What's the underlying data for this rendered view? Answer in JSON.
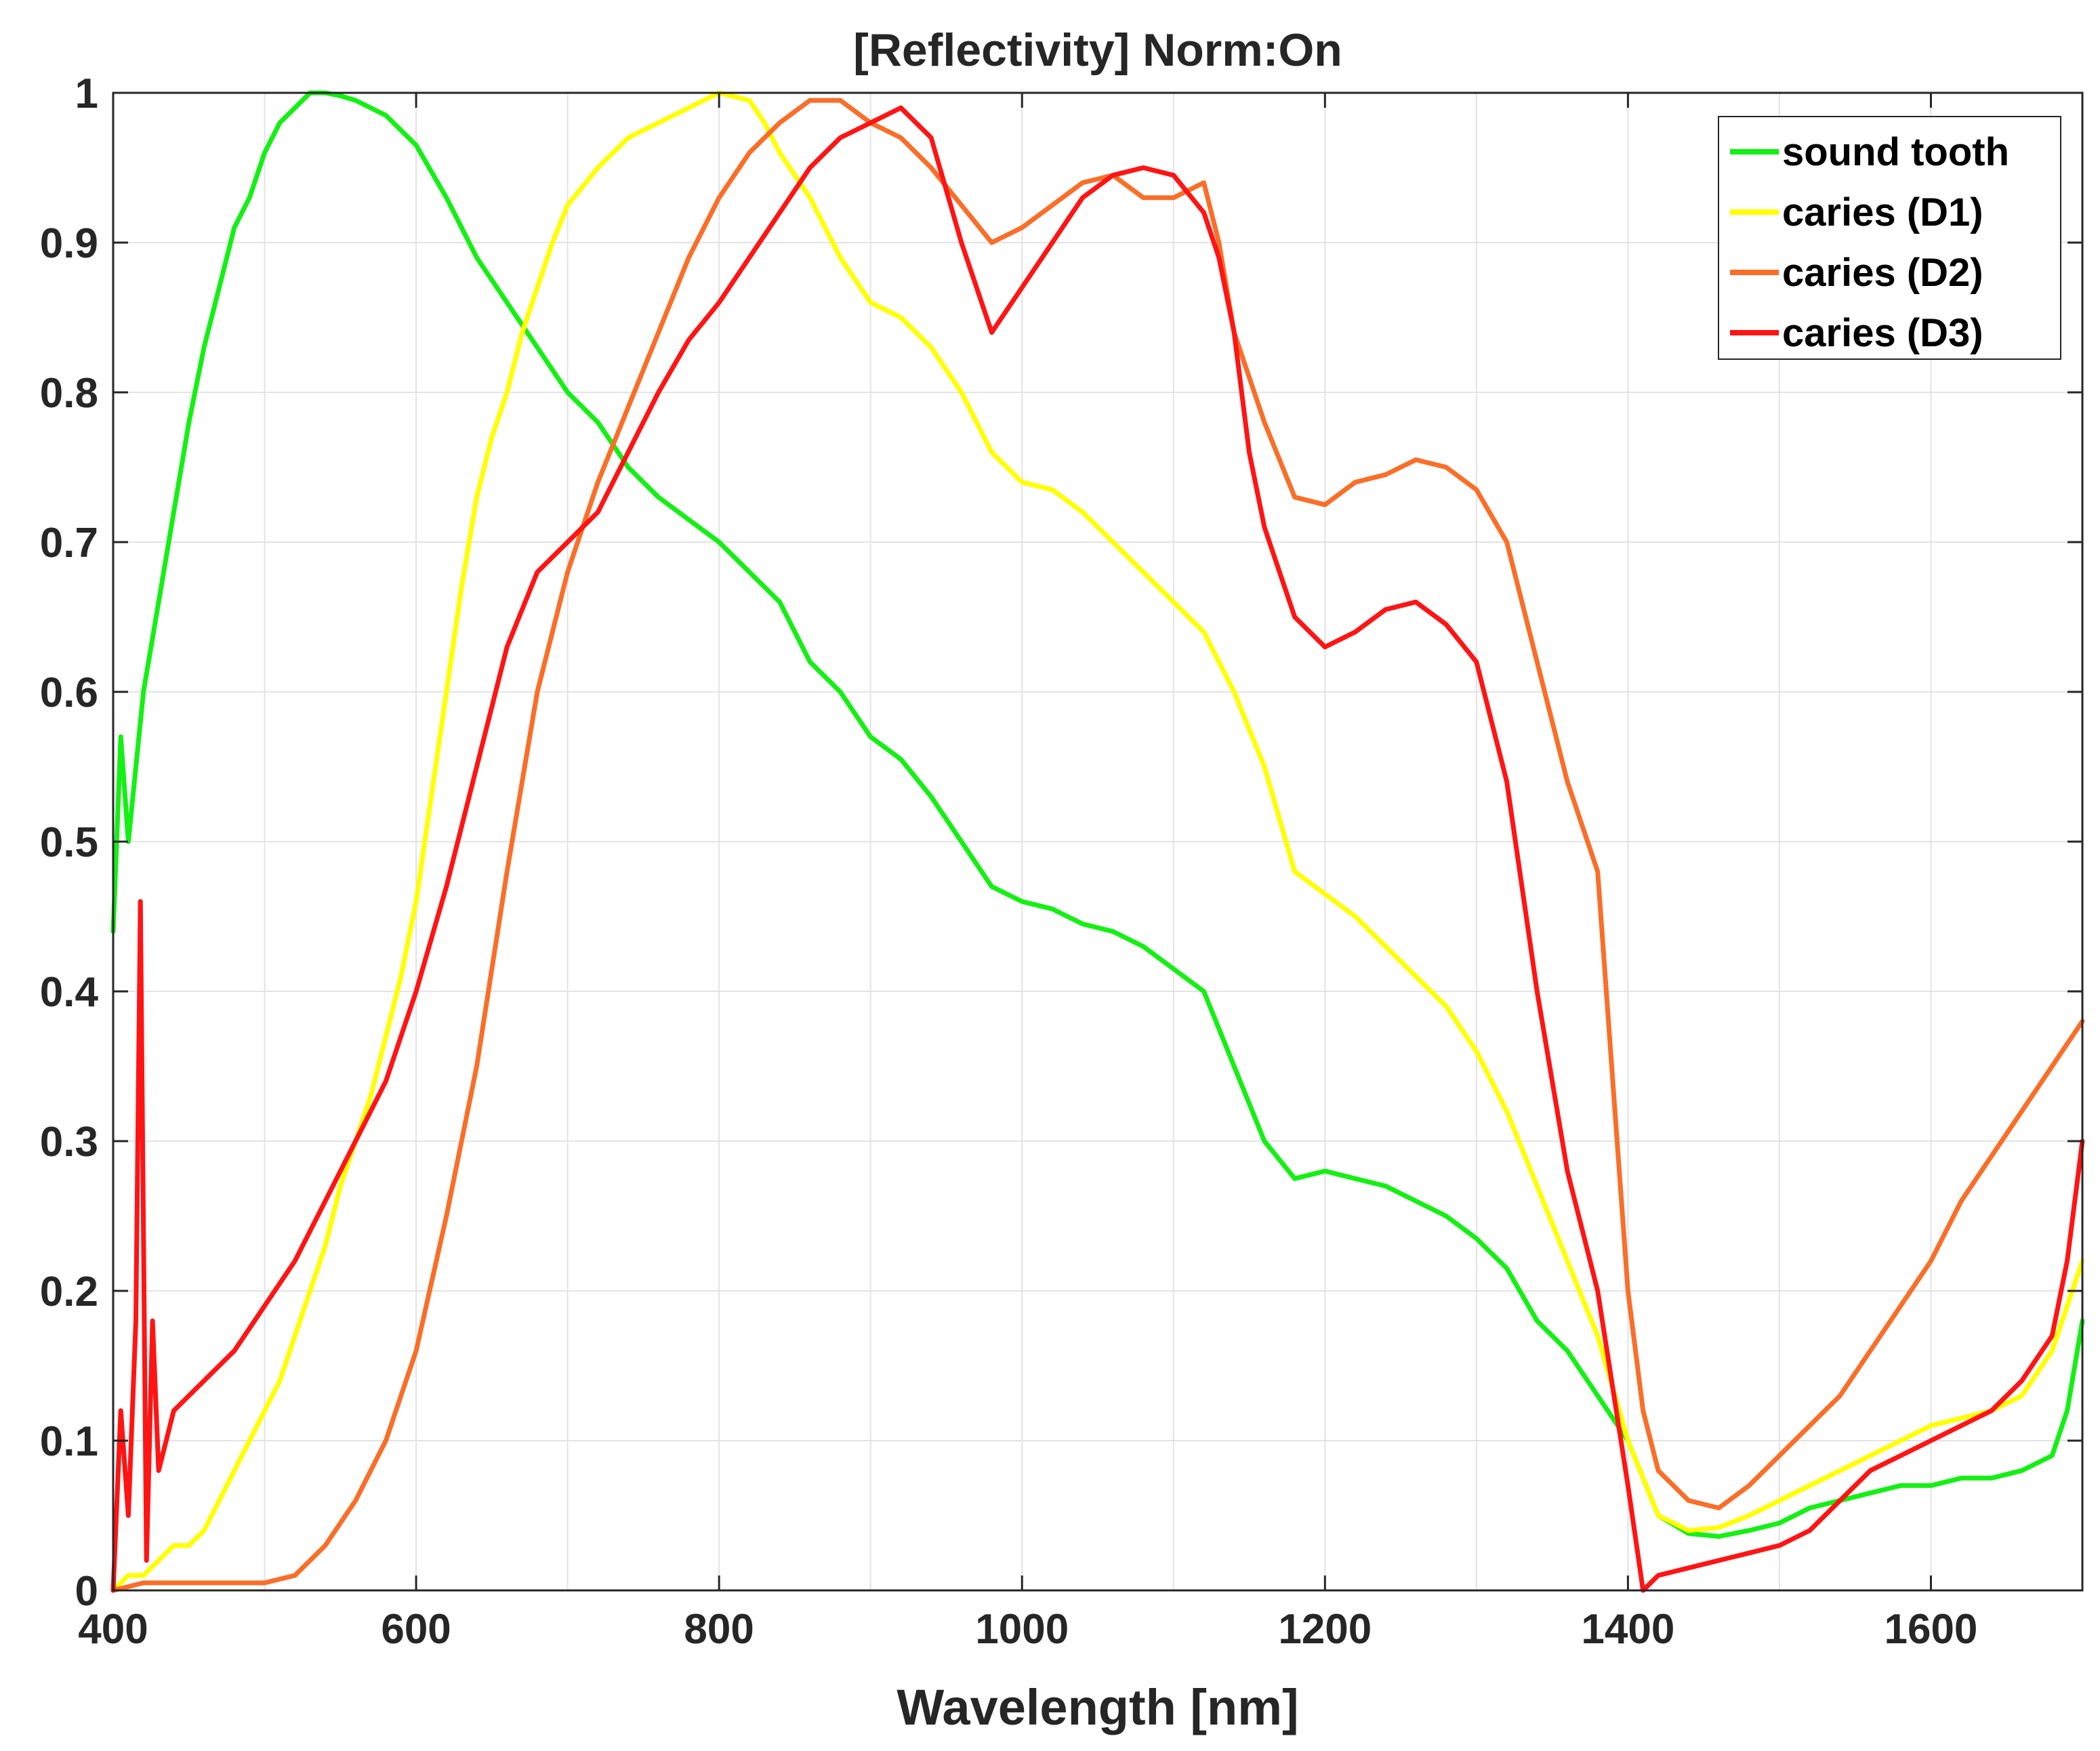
{
  "chart_data": {
    "type": "line",
    "title": "[Reflectivity]  Norm:On",
    "xlabel": "Wavelength [nm]",
    "ylabel": "",
    "xlim": [
      400,
      1700
    ],
    "ylim": [
      0,
      1
    ],
    "grid": true,
    "legend_position": "top-right",
    "x_ticks": [
      400,
      600,
      800,
      1000,
      1200,
      1400,
      1600
    ],
    "x_tick_labels": [
      "400",
      "600",
      "800",
      "1000",
      "1200",
      "1400",
      "1600"
    ],
    "y_ticks": [
      0,
      0.1,
      0.2,
      0.3,
      0.4,
      0.5,
      0.6,
      0.7,
      0.8,
      0.9,
      1
    ],
    "y_tick_labels": [
      "0",
      "0.1",
      "0.2",
      "0.3",
      "0.4",
      "0.5",
      "0.6",
      "0.7",
      "0.8",
      "0.9",
      "1"
    ],
    "series": [
      {
        "name": "sound tooth",
        "color": "#14f014",
        "x": [
          400,
          405,
          410,
          420,
          430,
          440,
          450,
          460,
          470,
          480,
          490,
          500,
          510,
          520,
          530,
          540,
          550,
          560,
          580,
          600,
          620,
          640,
          660,
          680,
          700,
          720,
          740,
          760,
          780,
          800,
          820,
          840,
          860,
          880,
          900,
          920,
          940,
          960,
          980,
          1000,
          1020,
          1040,
          1060,
          1080,
          1100,
          1120,
          1140,
          1160,
          1180,
          1200,
          1220,
          1240,
          1260,
          1280,
          1300,
          1320,
          1340,
          1360,
          1380,
          1400,
          1420,
          1440,
          1460,
          1480,
          1500,
          1520,
          1540,
          1560,
          1580,
          1600,
          1620,
          1640,
          1660,
          1680,
          1690,
          1700
        ],
        "y": [
          0.44,
          0.57,
          0.5,
          0.6,
          0.66,
          0.72,
          0.78,
          0.83,
          0.87,
          0.91,
          0.93,
          0.96,
          0.98,
          0.99,
          1.0,
          1.0,
          0.998,
          0.995,
          0.985,
          0.965,
          0.93,
          0.89,
          0.86,
          0.83,
          0.8,
          0.78,
          0.75,
          0.73,
          0.715,
          0.7,
          0.68,
          0.66,
          0.62,
          0.6,
          0.57,
          0.555,
          0.53,
          0.5,
          0.47,
          0.46,
          0.455,
          0.445,
          0.44,
          0.43,
          0.415,
          0.4,
          0.35,
          0.3,
          0.275,
          0.28,
          0.275,
          0.27,
          0.26,
          0.25,
          0.235,
          0.215,
          0.18,
          0.16,
          0.13,
          0.1,
          0.05,
          0.038,
          0.036,
          0.04,
          0.045,
          0.055,
          0.06,
          0.065,
          0.07,
          0.07,
          0.075,
          0.075,
          0.08,
          0.09,
          0.12,
          0.18
        ]
      },
      {
        "name": "caries (D1)",
        "color": "#ffff00",
        "x": [
          400,
          410,
          420,
          430,
          440,
          450,
          460,
          470,
          480,
          490,
          500,
          510,
          520,
          530,
          540,
          550,
          560,
          570,
          580,
          590,
          600,
          610,
          620,
          630,
          640,
          650,
          660,
          670,
          680,
          690,
          700,
          720,
          740,
          760,
          780,
          800,
          820,
          830,
          840,
          860,
          880,
          900,
          920,
          940,
          960,
          980,
          1000,
          1020,
          1040,
          1060,
          1080,
          1100,
          1120,
          1140,
          1160,
          1180,
          1200,
          1220,
          1240,
          1260,
          1280,
          1300,
          1320,
          1340,
          1360,
          1380,
          1400,
          1420,
          1440,
          1460,
          1480,
          1500,
          1520,
          1540,
          1560,
          1580,
          1600,
          1620,
          1640,
          1660,
          1680,
          1700
        ],
        "y": [
          0.0,
          0.01,
          0.01,
          0.02,
          0.03,
          0.03,
          0.04,
          0.06,
          0.08,
          0.1,
          0.12,
          0.14,
          0.17,
          0.2,
          0.23,
          0.27,
          0.3,
          0.33,
          0.37,
          0.41,
          0.46,
          0.53,
          0.6,
          0.67,
          0.73,
          0.77,
          0.8,
          0.84,
          0.87,
          0.9,
          0.925,
          0.95,
          0.97,
          0.98,
          0.99,
          1.0,
          0.995,
          0.98,
          0.96,
          0.93,
          0.89,
          0.86,
          0.85,
          0.83,
          0.8,
          0.76,
          0.74,
          0.735,
          0.72,
          0.7,
          0.68,
          0.66,
          0.64,
          0.6,
          0.55,
          0.48,
          0.465,
          0.45,
          0.43,
          0.41,
          0.39,
          0.36,
          0.32,
          0.27,
          0.22,
          0.17,
          0.1,
          0.05,
          0.04,
          0.042,
          0.05,
          0.06,
          0.07,
          0.08,
          0.09,
          0.1,
          0.11,
          0.115,
          0.12,
          0.13,
          0.16,
          0.22
        ]
      },
      {
        "name": "caries (D2)",
        "color": "#fa6e28",
        "x": [
          400,
          420,
          440,
          460,
          480,
          500,
          520,
          540,
          560,
          580,
          600,
          620,
          640,
          660,
          680,
          700,
          720,
          740,
          760,
          780,
          800,
          820,
          840,
          860,
          880,
          900,
          920,
          940,
          960,
          980,
          1000,
          1020,
          1040,
          1060,
          1080,
          1100,
          1120,
          1130,
          1140,
          1160,
          1180,
          1200,
          1220,
          1240,
          1260,
          1280,
          1300,
          1320,
          1340,
          1360,
          1380,
          1390,
          1400,
          1410,
          1420,
          1440,
          1460,
          1480,
          1500,
          1520,
          1540,
          1560,
          1580,
          1600,
          1620,
          1640,
          1660,
          1680,
          1700
        ],
        "y": [
          0.0,
          0.005,
          0.005,
          0.005,
          0.005,
          0.005,
          0.01,
          0.03,
          0.06,
          0.1,
          0.16,
          0.25,
          0.35,
          0.48,
          0.6,
          0.68,
          0.74,
          0.79,
          0.84,
          0.89,
          0.93,
          0.96,
          0.98,
          0.995,
          0.995,
          0.98,
          0.97,
          0.95,
          0.925,
          0.9,
          0.91,
          0.925,
          0.94,
          0.945,
          0.93,
          0.93,
          0.94,
          0.9,
          0.84,
          0.78,
          0.73,
          0.725,
          0.74,
          0.745,
          0.755,
          0.75,
          0.735,
          0.7,
          0.62,
          0.54,
          0.48,
          0.34,
          0.2,
          0.12,
          0.08,
          0.06,
          0.055,
          0.07,
          0.09,
          0.11,
          0.13,
          0.16,
          0.19,
          0.22,
          0.26,
          0.29,
          0.32,
          0.35,
          0.38
        ]
      },
      {
        "name": "caries (D3)",
        "color": "#ff1414",
        "x": [
          400,
          405,
          410,
          415,
          418,
          422,
          426,
          430,
          440,
          460,
          480,
          500,
          520,
          540,
          560,
          580,
          600,
          620,
          640,
          660,
          680,
          700,
          720,
          740,
          760,
          780,
          800,
          820,
          840,
          860,
          880,
          900,
          920,
          940,
          960,
          980,
          1000,
          1020,
          1040,
          1060,
          1080,
          1100,
          1120,
          1130,
          1140,
          1150,
          1160,
          1180,
          1200,
          1220,
          1240,
          1260,
          1280,
          1300,
          1320,
          1340,
          1360,
          1380,
          1400,
          1410,
          1420,
          1440,
          1460,
          1480,
          1500,
          1520,
          1540,
          1560,
          1580,
          1600,
          1620,
          1640,
          1660,
          1680,
          1690,
          1700
        ],
        "y": [
          0.0,
          0.12,
          0.05,
          0.18,
          0.46,
          0.02,
          0.18,
          0.08,
          0.12,
          0.14,
          0.16,
          0.19,
          0.22,
          0.26,
          0.3,
          0.34,
          0.4,
          0.47,
          0.55,
          0.63,
          0.68,
          0.7,
          0.72,
          0.76,
          0.8,
          0.835,
          0.86,
          0.89,
          0.92,
          0.95,
          0.97,
          0.98,
          0.99,
          0.97,
          0.9,
          0.84,
          0.87,
          0.9,
          0.93,
          0.945,
          0.95,
          0.945,
          0.92,
          0.89,
          0.84,
          0.76,
          0.71,
          0.65,
          0.63,
          0.64,
          0.655,
          0.66,
          0.645,
          0.62,
          0.54,
          0.4,
          0.28,
          0.2,
          0.07,
          0.0,
          0.01,
          0.015,
          0.02,
          0.025,
          0.03,
          0.04,
          0.06,
          0.08,
          0.09,
          0.1,
          0.11,
          0.12,
          0.14,
          0.17,
          0.22,
          0.3
        ]
      }
    ]
  }
}
